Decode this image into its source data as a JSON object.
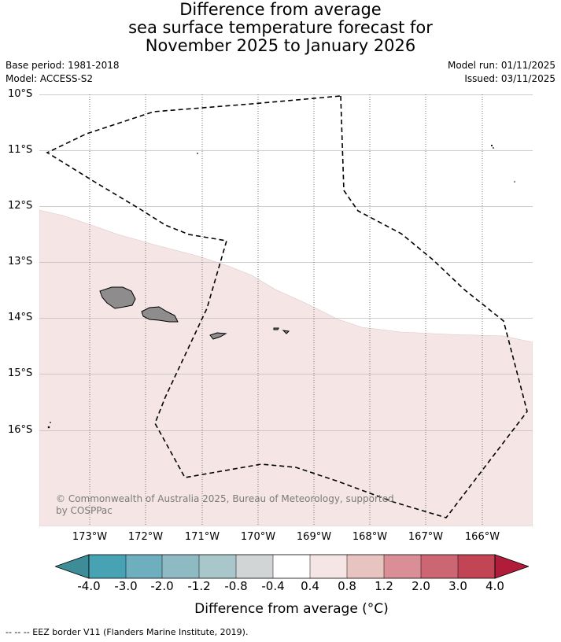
{
  "title": {
    "line1": "Difference from average",
    "line2": "sea surface temperature forecast for",
    "line3": "November 2025 to January 2026"
  },
  "meta": {
    "base_period": "Base period: 1981-2018",
    "model": "Model: ACCESS-S2",
    "model_run": "Model run: 01/11/2025",
    "issued": "Issued: 03/11/2025"
  },
  "map": {
    "lat_labels": [
      "10°S",
      "11°S",
      "12°S",
      "13°S",
      "14°S",
      "15°S",
      "16°S"
    ],
    "lon_labels": [
      "173°W",
      "172°W",
      "171°W",
      "170°W",
      "169°W",
      "168°W",
      "167°W",
      "166°W"
    ],
    "extent": {
      "lon_min": -173.9,
      "lon_max": -165.1,
      "lat_max": -10.0,
      "lat_min": -17.7
    },
    "anomaly_region": {
      "category": "0.4 to 0.8",
      "color": "#f5e6e5"
    },
    "land_color": "#8e8c8c",
    "copyright": "© Commonwealth of Australia 2025, Bureau of Meteorology, supported by COSPPac"
  },
  "colorbar": {
    "title": "Difference from average (°C)",
    "tick_labels": [
      "-4.0",
      "-3.0",
      "-2.0",
      "-1.2",
      "-0.8",
      "-0.4",
      "0.4",
      "0.8",
      "1.2",
      "2.0",
      "3.0",
      "4.0"
    ],
    "low_extend_color": "#3f8c99",
    "high_extend_color": "#b11c3a",
    "segment_colors": [
      "#47a3b4",
      "#6eafbf",
      "#8ebac4",
      "#a9c6ca",
      "#d2d5d5",
      "#ffffff",
      "#f5e6e5",
      "#e8c4c0",
      "#da8f96",
      "#cc6672",
      "#c14555"
    ]
  },
  "footnote": "--  --  -- EEZ border V11 (Flanders Marine Institute, 2019)."
}
